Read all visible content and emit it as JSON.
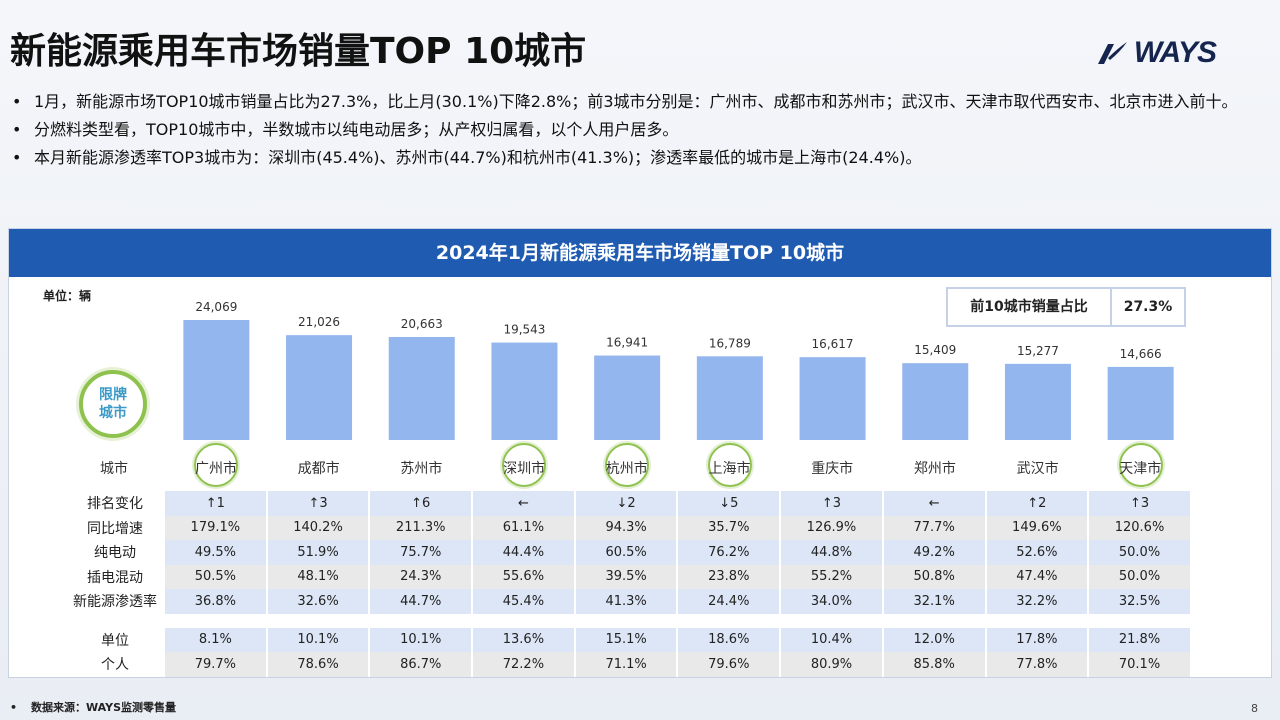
{
  "page": {
    "title": "新能源乘用车市场销量TOP 10城市",
    "logo_text": "WAYS",
    "page_number": "8"
  },
  "bullets": [
    "1月，新能源市场TOP10城市销量占比为27.3%，比上月(30.1%)下降2.8%；前3城市分别是：广州市、成都市和苏州市；武汉市、天津市取代西安市、北京市进入前十。",
    "分燃料类型看，TOP10城市中，半数城市以纯电动居多；从产权归属看，以个人用户居多。",
    "本月新能源渗透率TOP3城市为：深圳市(45.4%)、苏州市(44.7%)和杭州市(41.3%)；渗透率最低的城市是上海市(24.4%)。"
  ],
  "panel": {
    "header": "2024年1月新能源乘用车市场销量TOP 10城市",
    "unit_label": "单位：辆",
    "share_label": "前10城市销量占比",
    "share_value": "27.3%",
    "limit_badge": "限牌城市",
    "city_header": "城市"
  },
  "chart_data": {
    "type": "bar",
    "categories": [
      "广州市",
      "成都市",
      "苏州市",
      "深圳市",
      "杭州市",
      "上海市",
      "重庆市",
      "郑州市",
      "武汉市",
      "天津市"
    ],
    "values": [
      24069,
      21026,
      20663,
      19543,
      16941,
      16789,
      16617,
      15409,
      15277,
      14666
    ],
    "value_labels": [
      "24,069",
      "21,026",
      "20,663",
      "19,543",
      "16,941",
      "16,789",
      "16,617",
      "15,409",
      "15,277",
      "14,666"
    ],
    "limited_cities": [
      "广州市",
      "深圳市",
      "杭州市",
      "上海市",
      "天津市"
    ],
    "bar_color": "#94b6ee",
    "ylim": [
      0,
      26000
    ]
  },
  "table": {
    "rows": [
      {
        "label": "排名变化",
        "style": "blue",
        "values": [
          "↑1",
          "↑3",
          "↑6",
          "←",
          "↓2",
          "↓5",
          "↑3",
          "←",
          "↑2",
          "↑3"
        ]
      },
      {
        "label": "同比增速",
        "style": "gray",
        "values": [
          "179.1%",
          "140.2%",
          "211.3%",
          "61.1%",
          "94.3%",
          "35.7%",
          "126.9%",
          "77.7%",
          "149.6%",
          "120.6%"
        ]
      },
      {
        "label": "纯电动",
        "style": "blue",
        "values": [
          "49.5%",
          "51.9%",
          "75.7%",
          "44.4%",
          "60.5%",
          "76.2%",
          "44.8%",
          "49.2%",
          "52.6%",
          "50.0%"
        ]
      },
      {
        "label": "插电混动",
        "style": "gray",
        "values": [
          "50.5%",
          "48.1%",
          "24.3%",
          "55.6%",
          "39.5%",
          "23.8%",
          "55.2%",
          "50.8%",
          "47.4%",
          "50.0%"
        ]
      },
      {
        "label": "新能源渗透率",
        "style": "blue",
        "values": [
          "36.8%",
          "32.6%",
          "44.7%",
          "45.4%",
          "41.3%",
          "24.4%",
          "34.0%",
          "32.1%",
          "32.2%",
          "32.5%"
        ]
      },
      {
        "label": "单位",
        "style": "blue",
        "values": [
          "8.1%",
          "10.1%",
          "10.1%",
          "13.6%",
          "15.1%",
          "18.6%",
          "10.4%",
          "12.0%",
          "17.8%",
          "21.8%"
        ],
        "gap_before": true
      },
      {
        "label": "个人",
        "style": "gray",
        "values": [
          "79.7%",
          "78.6%",
          "86.7%",
          "72.2%",
          "71.1%",
          "79.6%",
          "80.9%",
          "85.8%",
          "77.8%",
          "70.1%"
        ]
      }
    ]
  },
  "footer": {
    "source": "数据来源：WAYS监测零售量"
  },
  "colors": {
    "header_bg": "#1f5bb0",
    "ring": "#8fc14e",
    "row_blue": "#dce6f6",
    "row_gray": "#e9e9e9"
  }
}
